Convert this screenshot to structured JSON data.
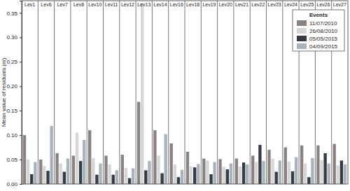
{
  "chart_data": {
    "type": "bar",
    "y_label": "Mean value of residuals (m)",
    "legend_title": "Events",
    "legend": "top-right",
    "grid": false,
    "categories": [
      "Lev1",
      "Lev6",
      "Lev7",
      "Lev8",
      "Lev10",
      "Lev11",
      "Lev12",
      "Lev13",
      "Lev14",
      "Lev16",
      "Lev18",
      "Lev19",
      "Lev20",
      "Lev21",
      "Lev22",
      "Lev23",
      "Lev24",
      "Lev25",
      "Lev26",
      "Lev27"
    ],
    "series": [
      {
        "name": "11/07/2010",
        "color": "#8b8183",
        "values": [
          0.1,
          0.05,
          0.063,
          0.058,
          0.11,
          0.058,
          0.06,
          0.168,
          0.11,
          0.083,
          0.066,
          0.052,
          0.051,
          0.052,
          0.058,
          0.07,
          0.075,
          0.079,
          0.079,
          0.082
        ]
      },
      {
        "name": "26/08/2010",
        "color": "#d6d6d6",
        "values": [
          0.05,
          0.037,
          0.042,
          0.105,
          0.053,
          0.04,
          0.033,
          0.37,
          0.058,
          0.04,
          0.036,
          0.048,
          0.035,
          0.036,
          0.045,
          0.052,
          0.046,
          0.042,
          0.049,
          0.038
        ]
      },
      {
        "name": "05/05/2015",
        "color": "#363a46",
        "values": [
          0.02,
          0.027,
          0.025,
          0.047,
          0.019,
          0.019,
          0.012,
          0.028,
          0.022,
          0.014,
          0.034,
          0.02,
          0.03,
          0.044,
          0.08,
          0.025,
          0.026,
          0.014,
          0.063,
          0.048
        ]
      },
      {
        "name": "04/09/2015",
        "color": "#a9b3bd",
        "values": [
          0.045,
          0.119,
          0.052,
          0.09,
          0.042,
          0.028,
          0.032,
          0.047,
          0.102,
          0.029,
          0.041,
          0.045,
          0.042,
          0.04,
          0.047,
          0.048,
          0.055,
          0.053,
          0.042,
          0.04
        ]
      }
    ],
    "ylim": [
      0,
      0.375
    ],
    "yticks": [
      {
        "value": 0,
        "label": "0.00"
      },
      0.05,
      {
        "value": 0.1,
        "label": "0.10"
      },
      0.15,
      {
        "value": 0.2,
        "label": "0.20"
      },
      0.25,
      {
        "value": 0.3,
        "label": "0.30"
      },
      0.35
    ]
  }
}
